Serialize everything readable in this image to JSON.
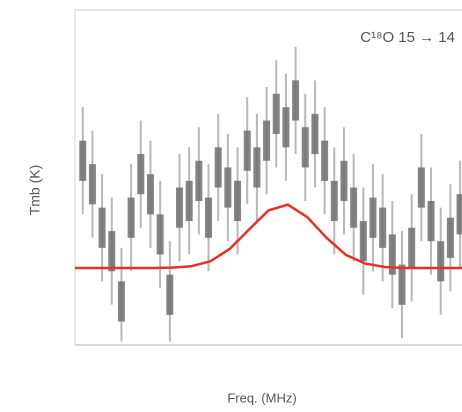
{
  "chart_data": {
    "type": "box",
    "annotation": "C¹⁸O 15 → 14",
    "x_label": "Freq. (MHz)",
    "y_label": "Tmb (K)",
    "xlim": [
      0,
      100
    ],
    "ylim": [
      -2.3,
      7.7
    ],
    "box_color": "#6f6f6f",
    "whisker_color": "#b8b8b8",
    "x": [
      2,
      4.5,
      7,
      9.5,
      12,
      14.5,
      17,
      19.5,
      22,
      24.5,
      27,
      29.5,
      32,
      34.5,
      37,
      39.5,
      42,
      44.5,
      47,
      49.5,
      52,
      54.5,
      57,
      59.5,
      62,
      64.5,
      67,
      69.5,
      72,
      74.5,
      77,
      79.5,
      82,
      84.5,
      87,
      89.5,
      92,
      94.5,
      97,
      99.5
    ],
    "box_low": [
      2.6,
      1.9,
      0.6,
      -0.1,
      -1.6,
      0.9,
      2.2,
      1.6,
      0.4,
      -1.4,
      1.2,
      1.4,
      2.0,
      0.9,
      2.4,
      1.8,
      1.4,
      2.9,
      2.4,
      3.2,
      4.0,
      3.6,
      4.4,
      3.0,
      3.4,
      2.6,
      1.4,
      2.0,
      1.2,
      0.2,
      0.9,
      0.6,
      -0.2,
      -1.1,
      0.0,
      1.8,
      0.8,
      -0.4,
      0.3,
      1.0
    ],
    "box_high": [
      3.8,
      3.1,
      1.8,
      1.1,
      -0.4,
      2.1,
      3.4,
      2.8,
      1.6,
      -0.2,
      2.4,
      2.6,
      3.2,
      2.1,
      3.6,
      3.0,
      2.6,
      4.1,
      3.6,
      4.4,
      5.2,
      4.8,
      5.6,
      4.2,
      4.6,
      3.8,
      2.6,
      3.2,
      2.4,
      1.4,
      2.1,
      1.8,
      1.0,
      0.1,
      1.2,
      3.0,
      2.0,
      0.8,
      1.5,
      2.2
    ],
    "whisker_low": [
      1.6,
      0.9,
      -0.4,
      -1.1,
      -2.2,
      -0.1,
      1.2,
      0.6,
      -0.6,
      -2.2,
      0.2,
      0.4,
      1.0,
      -0.1,
      1.4,
      0.8,
      0.4,
      1.9,
      1.4,
      2.2,
      3.0,
      2.6,
      3.4,
      2.0,
      2.4,
      1.6,
      0.4,
      1.0,
      0.2,
      -0.8,
      -0.1,
      -0.4,
      -1.2,
      -2.1,
      -1.0,
      0.8,
      -0.2,
      -1.4,
      -0.7,
      0.0
    ],
    "whisker_high": [
      4.8,
      4.1,
      2.8,
      2.1,
      0.6,
      3.1,
      4.4,
      3.8,
      2.6,
      0.8,
      3.4,
      3.6,
      4.2,
      3.1,
      4.6,
      4.0,
      3.6,
      5.1,
      4.6,
      5.4,
      6.2,
      5.8,
      6.6,
      5.2,
      5.6,
      4.8,
      3.6,
      4.2,
      3.4,
      2.4,
      3.1,
      2.8,
      2.0,
      1.1,
      2.2,
      4.0,
      3.0,
      1.8,
      2.5,
      3.2
    ],
    "fit": {
      "color": "#e8302a",
      "x": [
        0,
        5,
        10,
        15,
        20,
        25,
        30,
        35,
        40,
        45,
        50,
        55,
        60,
        65,
        70,
        75,
        80,
        85,
        90,
        95,
        100
      ],
      "values": [
        0,
        0,
        0,
        0,
        0,
        0.01,
        0.05,
        0.2,
        0.57,
        1.15,
        1.72,
        1.89,
        1.52,
        0.9,
        0.39,
        0.13,
        0.03,
        0,
        0,
        0,
        0
      ]
    }
  }
}
